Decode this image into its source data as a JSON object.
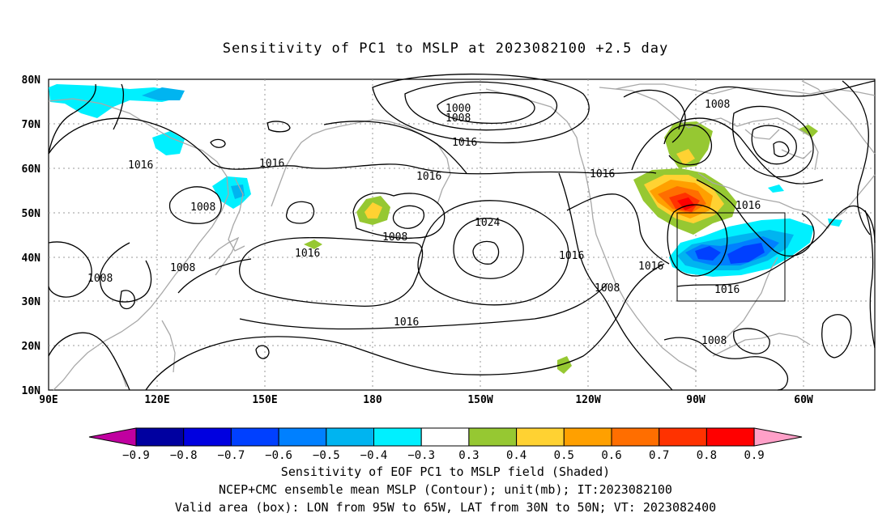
{
  "title": "Sensitivity of PC1 to MSLP at 2023082100 +2.5 day",
  "lat_labels": [
    "80N",
    "70N",
    "60N",
    "50N",
    "40N",
    "30N",
    "20N",
    "10N"
  ],
  "lon_labels": [
    "90E",
    "120E",
    "150E",
    "180",
    "150W",
    "120W",
    "90W",
    "60W"
  ],
  "contour_labels": [
    {
      "text": "1000"
    },
    {
      "text": "1008"
    },
    {
      "text": "1016"
    },
    {
      "text": "1008"
    },
    {
      "text": "1016"
    },
    {
      "text": "1016"
    },
    {
      "text": "1008"
    },
    {
      "text": "1016"
    },
    {
      "text": "1016"
    },
    {
      "text": "1008"
    },
    {
      "text": "1016"
    },
    {
      "text": "1008"
    },
    {
      "text": "1008"
    },
    {
      "text": "1024"
    },
    {
      "text": "1016"
    },
    {
      "text": "1016"
    },
    {
      "text": "1016"
    },
    {
      "text": "1008"
    },
    {
      "text": "1016"
    },
    {
      "text": "1016"
    },
    {
      "text": "1008"
    }
  ],
  "colorbar": {
    "labels": [
      "-0.9",
      "-0.8",
      "-0.7",
      "-0.6",
      "-0.5",
      "-0.4",
      "-0.3",
      "0.3",
      "0.4",
      "0.5",
      "0.6",
      "0.7",
      "0.8",
      "0.9"
    ],
    "colors": [
      "#0000a0",
      "#0000e0",
      "#0040ff",
      "#0080ff",
      "#00b4f0",
      "#00f0ff",
      "#ffffff",
      "#96c832",
      "#ffd232",
      "#ffa000",
      "#ff6e00",
      "#ff3200",
      "#ff0000"
    ],
    "low_extend_color": "#c000a0",
    "high_extend_color": "#ffa0c8"
  },
  "captions": [
    "Sensitivity of EOF PC1 to MSLP field (Shaded)",
    "NCEP+CMC ensemble mean MSLP (Contour); unit(mb); IT:2023082100",
    "Valid area (box): LON from 95W to 65W, LAT from 30N to 50N; VT: 2023082400"
  ]
}
